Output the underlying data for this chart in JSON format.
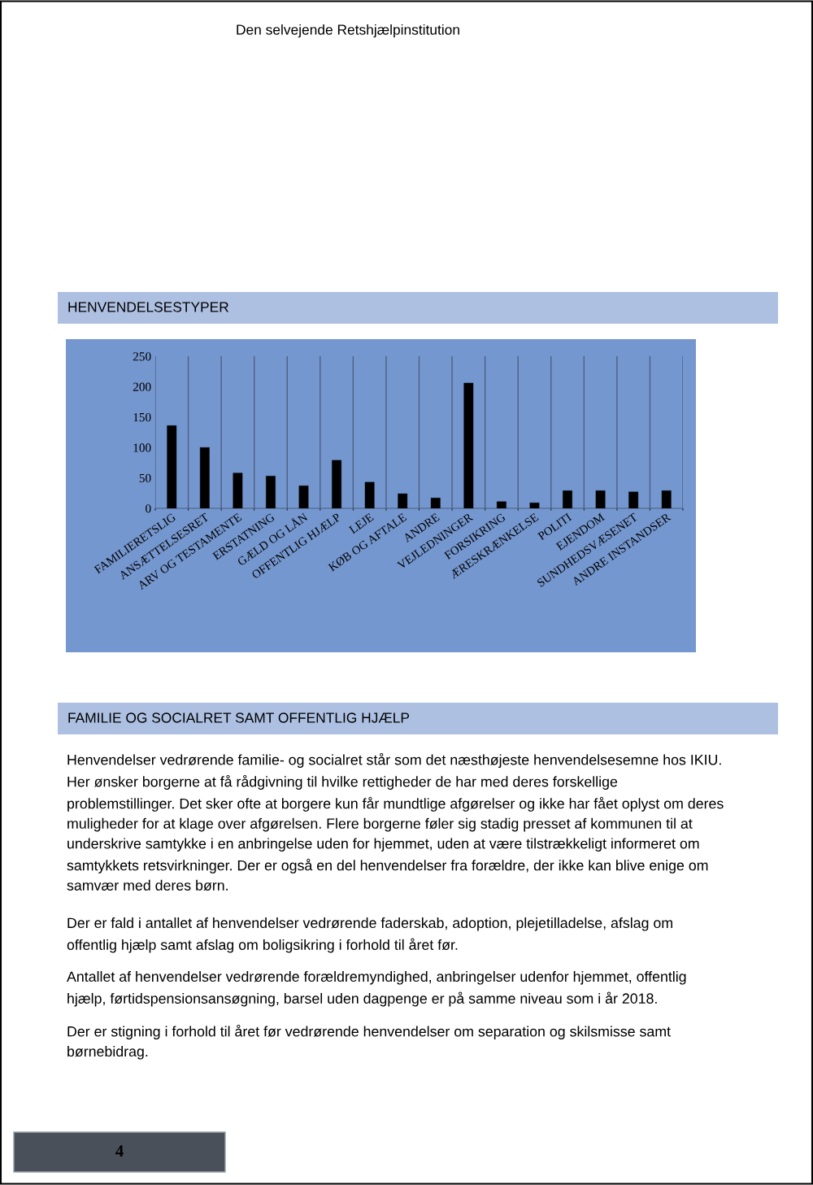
{
  "chart_data": {
    "type": "bar",
    "title": "HENVENDELSESTYPER",
    "categories": [
      "FAMILIERETSLIG",
      "ANSÆTTELSESRET",
      "ARV OG TESTAMENTE",
      "ERSTATNING",
      "GÆLD OG LÅN",
      "OFFENTLIG HJÆLP",
      "LEJE",
      "KØB OG AFTALE",
      "ANDRE",
      "VEJLEDNINGER",
      "FORSIKRING",
      "ÆRESKRÆNKELSE",
      "POLITI",
      "EJENDOM",
      "SUNDHEDSVÆSENET",
      "ANDRE INSTANDSER"
    ],
    "values": [
      136,
      100,
      58,
      53,
      37,
      79,
      43,
      24,
      17,
      206,
      11,
      9,
      29,
      29,
      27,
      29
    ],
    "color": "#000000",
    "ylim": [
      0,
      250
    ],
    "yticks": [
      0,
      50,
      100,
      150,
      200,
      250
    ],
    "grid": "x",
    "legend": false,
    "annotations": [
      "Den selvejende Retshjælpinstitution",
      "FAMILIE OG SOCIALRET SAMT OFFENTLIG HJÆLP",
      "Henvendelser vedrørende familie- og socialret står som det næsthøjeste henvendelsesemne hos IKIU.\nHer ønsker borgerne at få rådgivning til hvilke rettigheder de har med deres forskellige\nproblemstillinger. Det sker ofte at borgere kun får mundtlige afgørelser og ikke har fået oplyst om deres\nmuligheder for at klage over afgørelsen. Flere borgerne føler sig stadig presset af kommunen til at\nunderskrive samtykke i en anbringelse uden for hjemmet, uden at være tilstrækkeligt informeret om\nsamtykkets retsvirkninger. Der er også en del henvendelser fra forældre, der ikke kan blive enige om\nsamvær med deres børn.",
      "Der er fald i antallet af henvendelser vedrørende faderskab, adoption, plejetilladelse, afslag om\noffentlig hjælp samt afslag om boligsikring i forhold til året før.",
      "Antallet af henvendelser vedrørende forældremyndighed, anbringelser udenfor hjemmet, offentlig\nhjælp, førtidspensionsansøgning, barsel uden dagpenge er på samme niveau som i år 2018.",
      "Der er stigning i forhold til året før vedrørende henvendelser om separation og skilsmisse samt\nbørnebidrag.",
      "4"
    ]
  }
}
